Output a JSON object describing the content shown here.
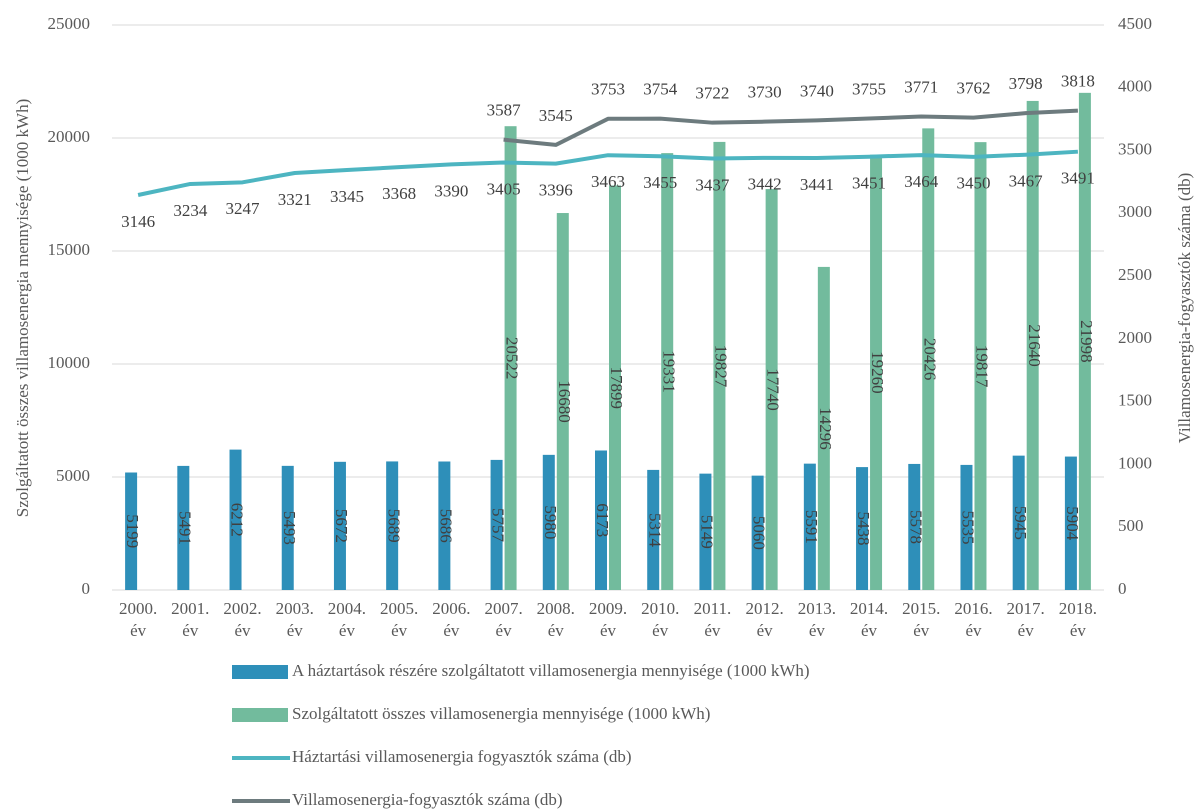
{
  "chart_data": {
    "type": "bar-line",
    "categories": [
      "2000. év",
      "2001. év",
      "2002. év",
      "2003. év",
      "2004. év",
      "2005. év",
      "2006. év",
      "2007. év",
      "2008. év",
      "2009. év",
      "2010. év",
      "2011. év",
      "2012. év",
      "2013. év",
      "2014. év",
      "2015. év",
      "2016. év",
      "2017. év",
      "2018. év"
    ],
    "series": [
      {
        "name": "A háztartások részére szolgáltatott villamosenergia mennyisége (1000 kWh)",
        "color": "#2e8fb9",
        "kind": "bar",
        "values": [
          5199,
          5491,
          6212,
          5493,
          5672,
          5689,
          5686,
          5757,
          5980,
          6173,
          5314,
          5149,
          5060,
          5591,
          5438,
          5578,
          5535,
          5945,
          5904
        ]
      },
      {
        "name": "Szolgáltatott összes villamosenergia mennyisége (1000 kWh)",
        "color": "#72bb9d",
        "kind": "bar",
        "values": [
          null,
          null,
          null,
          null,
          null,
          null,
          null,
          20522,
          16680,
          17899,
          19331,
          19827,
          17740,
          14296,
          19260,
          20426,
          19817,
          21640,
          21998
        ]
      },
      {
        "name": "Háztartási villamosenergia fogyasztók száma (db)",
        "color": "#4db5c1",
        "kind": "line",
        "axis": "y2",
        "values": [
          3146,
          3234,
          3247,
          3321,
          3345,
          3368,
          3390,
          3405,
          3396,
          3463,
          3455,
          3437,
          3442,
          3441,
          3451,
          3464,
          3450,
          3467,
          3491
        ]
      },
      {
        "name": "Villamosenergia-fogyasztók száma (db)",
        "color": "#6d7b7e",
        "kind": "line",
        "axis": "y2",
        "values": [
          null,
          null,
          null,
          null,
          null,
          null,
          null,
          3587,
          3545,
          3753,
          3754,
          3722,
          3730,
          3740,
          3755,
          3771,
          3762,
          3798,
          3818
        ]
      }
    ],
    "ylabel": "Szolgáltatott összes villamosenergia mennyisége (1000 kWh)",
    "y2label": "Villamosenergia-fogyasztók száma (db)",
    "ylim": [
      0,
      25000
    ],
    "yticks": [
      0,
      5000,
      10000,
      15000,
      20000,
      25000
    ],
    "y2lim": [
      0,
      4500
    ],
    "y2ticks": [
      0,
      500,
      1000,
      1500,
      2000,
      2500,
      3000,
      3500,
      4000,
      4500
    ],
    "grid": true,
    "legend": "bottom"
  }
}
